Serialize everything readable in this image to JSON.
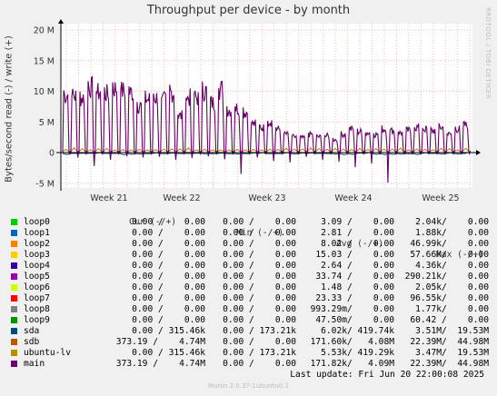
{
  "chart_data": {
    "type": "line",
    "title": "Throughput per device - by month",
    "ylabel": "Bytes/second read (-) / write (+)",
    "ylim": [
      -6000000,
      21000000
    ],
    "y_ticks": [
      {
        "value": 20000000,
        "label": "20 M"
      },
      {
        "value": 15000000,
        "label": "15 M"
      },
      {
        "value": 10000000,
        "label": "10 M"
      },
      {
        "value": 5000000,
        "label": "5 M"
      },
      {
        "value": 0,
        "label": "0"
      },
      {
        "value": -5000000,
        "label": "-5 M"
      }
    ],
    "x_ticks": [
      "Week 21",
      "Week 22",
      "Week 23",
      "Week 24",
      "Week 25"
    ],
    "grid": true,
    "legend_position": "bottom",
    "watermark": "RRDTOOL / TOBI OETIKER",
    "series": [
      {
        "name": "main",
        "color": "#660066",
        "write_levels": [
          11,
          10.8,
          10.5,
          12.5,
          11.5,
          11.2,
          12.3,
          11.8,
          11.5,
          9,
          10.2,
          10.5,
          10,
          11.5,
          7,
          10.5,
          10.5,
          11.8,
          9.5,
          12.2,
          8.2,
          8.5,
          7.8,
          5.5,
          4.8,
          6,
          4.5,
          3.5,
          3,
          2.8,
          3.5,
          3,
          3.2,
          2.5,
          3.5,
          4.5,
          4,
          3.8,
          3.5,
          4.5,
          4.2,
          3.8,
          4.2,
          4.8,
          4.5,
          4.2,
          4.8,
          3.5,
          4.5,
          5.2
        ],
        "read_dips": [
          -0.8,
          -2.2,
          -1.2,
          -0.6,
          -0.8,
          -0.7,
          -1.2,
          -0.9,
          -0.6,
          -1.1,
          -3.5,
          -0.8,
          -1.4,
          -1.6,
          -0.7,
          -1.2,
          -1.5,
          -2.4,
          -1.8,
          -4.9
        ]
      },
      {
        "name": "ubuntu-lv",
        "color": "#cc7700",
        "note": "small positive activity near 0.5 M"
      },
      {
        "name": "sda",
        "color": "#004b76",
        "note": "mirrors small negative read activity"
      }
    ]
  },
  "legend": {
    "headers": {
      "cur": "Cur (-/+)",
      "min": "Min (-/+)",
      "avg": "Avg (-/+)",
      "max": "Max (-/+)"
    },
    "rows": [
      {
        "name": "loop0",
        "color": "#00cc00",
        "cur": " 0.00 /    0.00",
        "min": " 0.00 /    0.00",
        "avg": "  3.09 /    0.00",
        "max": "  2.04k/    0.00"
      },
      {
        "name": "loop1",
        "color": "#0066b3",
        "cur": " 0.00 /    0.00",
        "min": " 0.00 /    0.00",
        "avg": "  2.81 /    0.00",
        "max": "  1.88k/    0.00"
      },
      {
        "name": "loop2",
        "color": "#ff8000",
        "cur": " 0.00 /    0.00",
        "min": " 0.00 /    0.00",
        "avg": "  8.02 /    0.00",
        "max": " 46.99k/    0.00"
      },
      {
        "name": "loop3",
        "color": "#ffcc00",
        "cur": " 0.00 /    0.00",
        "min": " 0.00 /    0.00",
        "avg": " 15.03 /    0.00",
        "max": " 57.66k/    0.00"
      },
      {
        "name": "loop4",
        "color": "#330099",
        "cur": " 0.00 /    0.00",
        "min": " 0.00 /    0.00",
        "avg": "  2.64 /    0.00",
        "max": "  4.36k/    0.00"
      },
      {
        "name": "loop5",
        "color": "#990099",
        "cur": " 0.00 /    0.00",
        "min": " 0.00 /    0.00",
        "avg": " 33.74 /    0.00",
        "max": "290.21k/    0.00"
      },
      {
        "name": "loop6",
        "color": "#ccff00",
        "cur": " 0.00 /    0.00",
        "min": " 0.00 /    0.00",
        "avg": "  1.48 /    0.00",
        "max": "  2.05k/    0.00"
      },
      {
        "name": "loop7",
        "color": "#ff0000",
        "cur": " 0.00 /    0.00",
        "min": " 0.00 /    0.00",
        "avg": " 23.33 /    0.00",
        "max": " 96.55k/    0.00"
      },
      {
        "name": "loop8",
        "color": "#808080",
        "cur": " 0.00 /    0.00",
        "min": " 0.00 /    0.00",
        "avg": "993.29m/    0.00",
        "max": "  1.77k/    0.00"
      },
      {
        "name": "loop9",
        "color": "#008f00",
        "cur": " 0.00 /    0.00",
        "min": " 0.00 /    0.00",
        "avg": " 47.50m/    0.00",
        "max": " 60.42 /    0.00"
      },
      {
        "name": "sda",
        "color": "#00487d",
        "cur": " 0.00 / 315.46k",
        "min": " 0.00 / 173.21k",
        "avg": "  6.02k/ 419.74k",
        "max": "  3.51M/  19.53M"
      },
      {
        "name": "sdb",
        "color": "#b35a00",
        "cur": "373.19 /    4.74M",
        "min": " 0.00 /    0.00",
        "avg": "171.60k/   4.08M",
        "max": " 22.39M/  44.98M"
      },
      {
        "name": "ubuntu-lv",
        "color": "#b38f00",
        "cur": " 0.00 / 315.46k",
        "min": " 0.00 / 173.21k",
        "avg": "  5.53k/ 419.29k",
        "max": "  3.47M/  19.53M"
      },
      {
        "name": "main",
        "color": "#6b006b",
        "cur": "373.19 /    4.74M",
        "min": " 0.00 /    0.00",
        "avg": "171.82k/   4.09M",
        "max": " 22.39M/  44.98M"
      }
    ]
  },
  "footer": {
    "last_update": "Last update: Fri Jun 20 22:00:08 2025",
    "munin": "Munin 2.0.37-1ubuntu0.1"
  }
}
